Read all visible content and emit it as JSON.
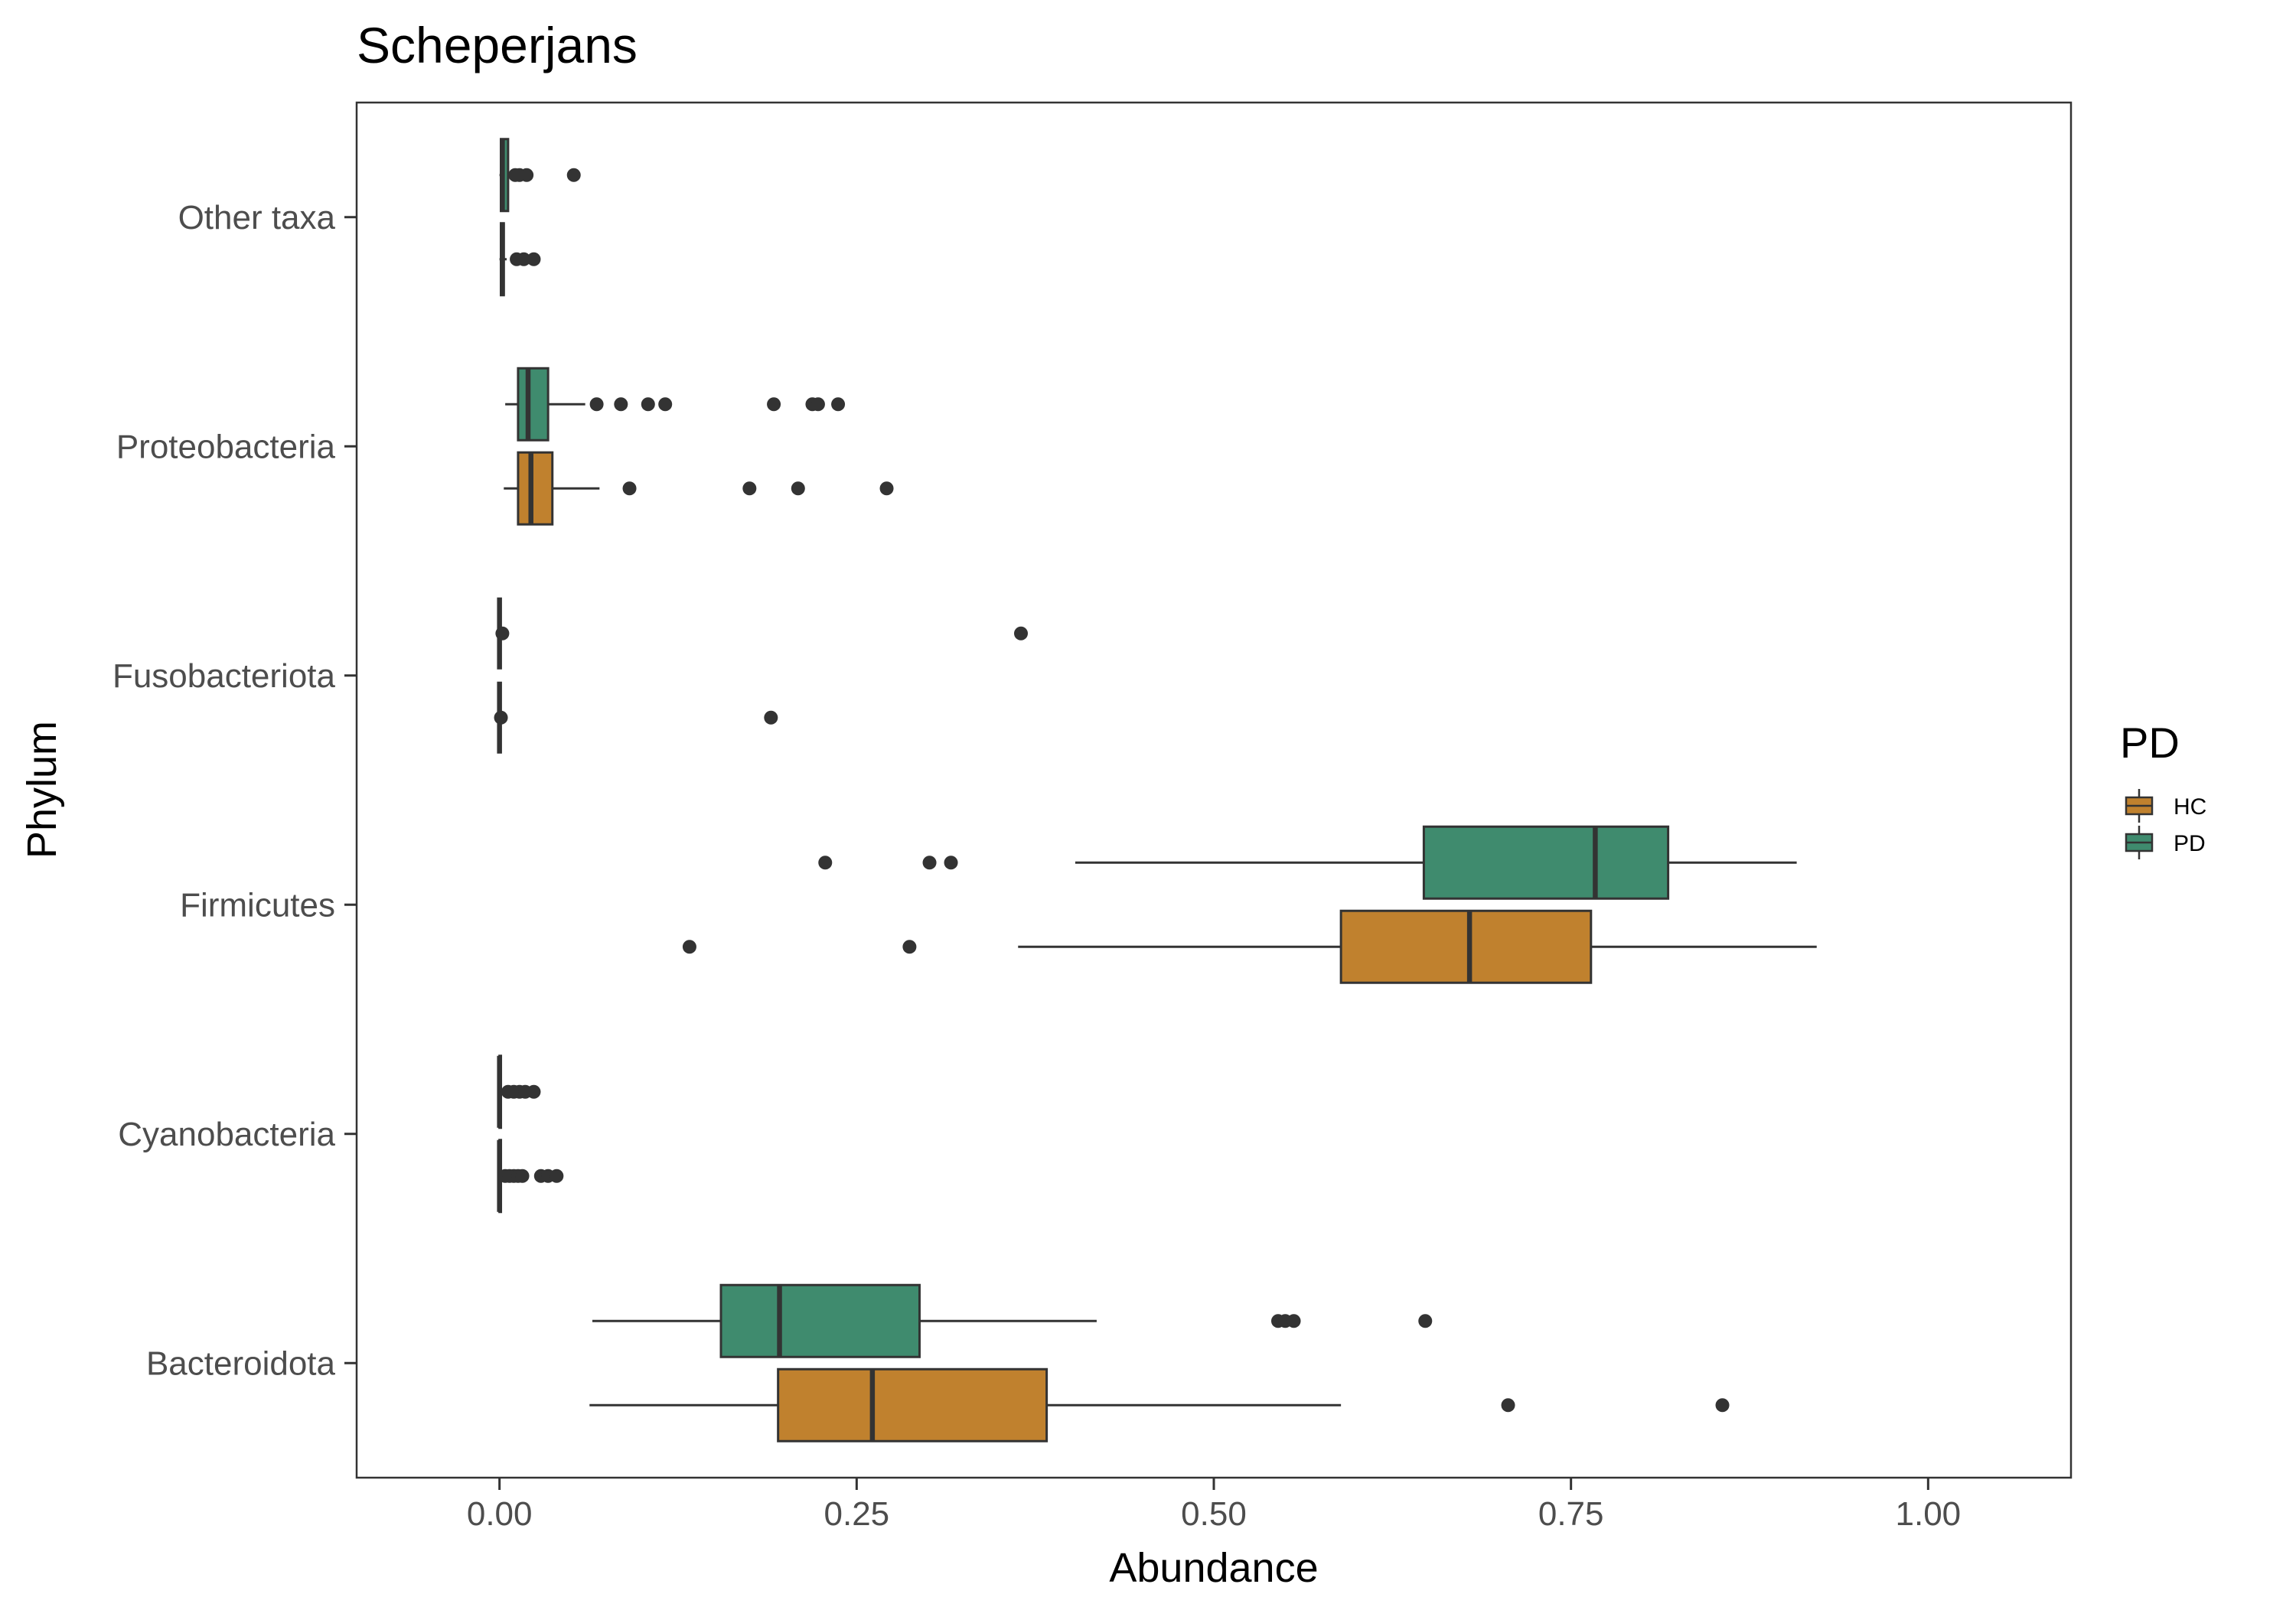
{
  "chart_data": {
    "type": "boxplot",
    "orientation": "horizontal",
    "title": "Scheperjans",
    "xlabel": "Abundance",
    "ylabel": "Phylum",
    "xlim": [
      -0.1,
      1.1
    ],
    "xticks": [
      0,
      0.25,
      0.5,
      0.75,
      1.0
    ],
    "xtick_labels": [
      "0.00",
      "0.25",
      "0.50",
      "0.75",
      "1.00"
    ],
    "categories": [
      "Bacteroidota",
      "Cyanobacteria",
      "Firmicutes",
      "Fusobacteriota",
      "Proteobacteria",
      "Other taxa"
    ],
    "grid": false,
    "legend": {
      "title": "PD",
      "position": "right",
      "entries": [
        {
          "label": "HC",
          "color": "#C0812E"
        },
        {
          "label": "PD",
          "color": "#3F8B6E"
        }
      ]
    },
    "series": [
      {
        "name": "HC",
        "color": "#C0812E",
        "boxes": [
          {
            "category": "Bacteroidota",
            "whisker_low": 0.063,
            "q1": 0.195,
            "median": 0.261,
            "q3": 0.383,
            "whisker_high": 0.589,
            "outliers": [
              0.706,
              0.856
            ]
          },
          {
            "category": "Cyanobacteria",
            "whisker_low": 0.0,
            "q1": 0.0,
            "median": 0.0,
            "q3": 0.001,
            "whisker_high": 0.002,
            "outliers": [
              0.004,
              0.007,
              0.01,
              0.013,
              0.016,
              0.029,
              0.034,
              0.04
            ]
          },
          {
            "category": "Firmicutes",
            "whisker_low": 0.363,
            "q1": 0.589,
            "median": 0.679,
            "q3": 0.764,
            "whisker_high": 0.922,
            "outliers": [
              0.133,
              0.287
            ]
          },
          {
            "category": "Fusobacteriota",
            "whisker_low": 0.0,
            "q1": 0.0,
            "median": 0.0,
            "q3": 0.0,
            "whisker_high": 0.0,
            "outliers": [
              0.001,
              0.19
            ]
          },
          {
            "category": "Proteobacteria",
            "whisker_low": 0.003,
            "q1": 0.013,
            "median": 0.022,
            "q3": 0.037,
            "whisker_high": 0.07,
            "outliers": [
              0.091,
              0.175,
              0.209,
              0.271
            ]
          },
          {
            "category": "Other taxa",
            "whisker_low": 0.0,
            "q1": 0.001,
            "median": 0.002,
            "q3": 0.003,
            "whisker_high": 0.005,
            "outliers": [
              0.012,
              0.017,
              0.024
            ]
          }
        ]
      },
      {
        "name": "PD",
        "color": "#3F8B6E",
        "boxes": [
          {
            "category": "Bacteroidota",
            "whisker_low": 0.065,
            "q1": 0.155,
            "median": 0.196,
            "q3": 0.294,
            "whisker_high": 0.418,
            "outliers": [
              0.545,
              0.55,
              0.556,
              0.648
            ]
          },
          {
            "category": "Cyanobacteria",
            "whisker_low": 0.0,
            "q1": 0.0,
            "median": 0.0,
            "q3": 0.001,
            "whisker_high": 0.002,
            "outliers": [
              0.006,
              0.01,
              0.014,
              0.018,
              0.024
            ]
          },
          {
            "category": "Firmicutes",
            "whisker_low": 0.403,
            "q1": 0.647,
            "median": 0.767,
            "q3": 0.818,
            "whisker_high": 0.908,
            "outliers": [
              0.228,
              0.301,
              0.316
            ]
          },
          {
            "category": "Fusobacteriota",
            "whisker_low": 0.0,
            "q1": 0.0,
            "median": 0.0,
            "q3": 0.0,
            "whisker_high": 0.0,
            "outliers": [
              0.002,
              0.365
            ]
          },
          {
            "category": "Proteobacteria",
            "whisker_low": 0.004,
            "q1": 0.013,
            "median": 0.02,
            "q3": 0.034,
            "whisker_high": 0.06,
            "outliers": [
              0.068,
              0.085,
              0.104,
              0.116,
              0.192,
              0.219,
              0.223,
              0.237
            ]
          },
          {
            "category": "Other taxa",
            "whisker_low": 0.0,
            "q1": 0.001,
            "median": 0.002,
            "q3": 0.006,
            "whisker_high": 0.007,
            "outliers": [
              0.011,
              0.014,
              0.019,
              0.052
            ]
          }
        ]
      }
    ]
  }
}
